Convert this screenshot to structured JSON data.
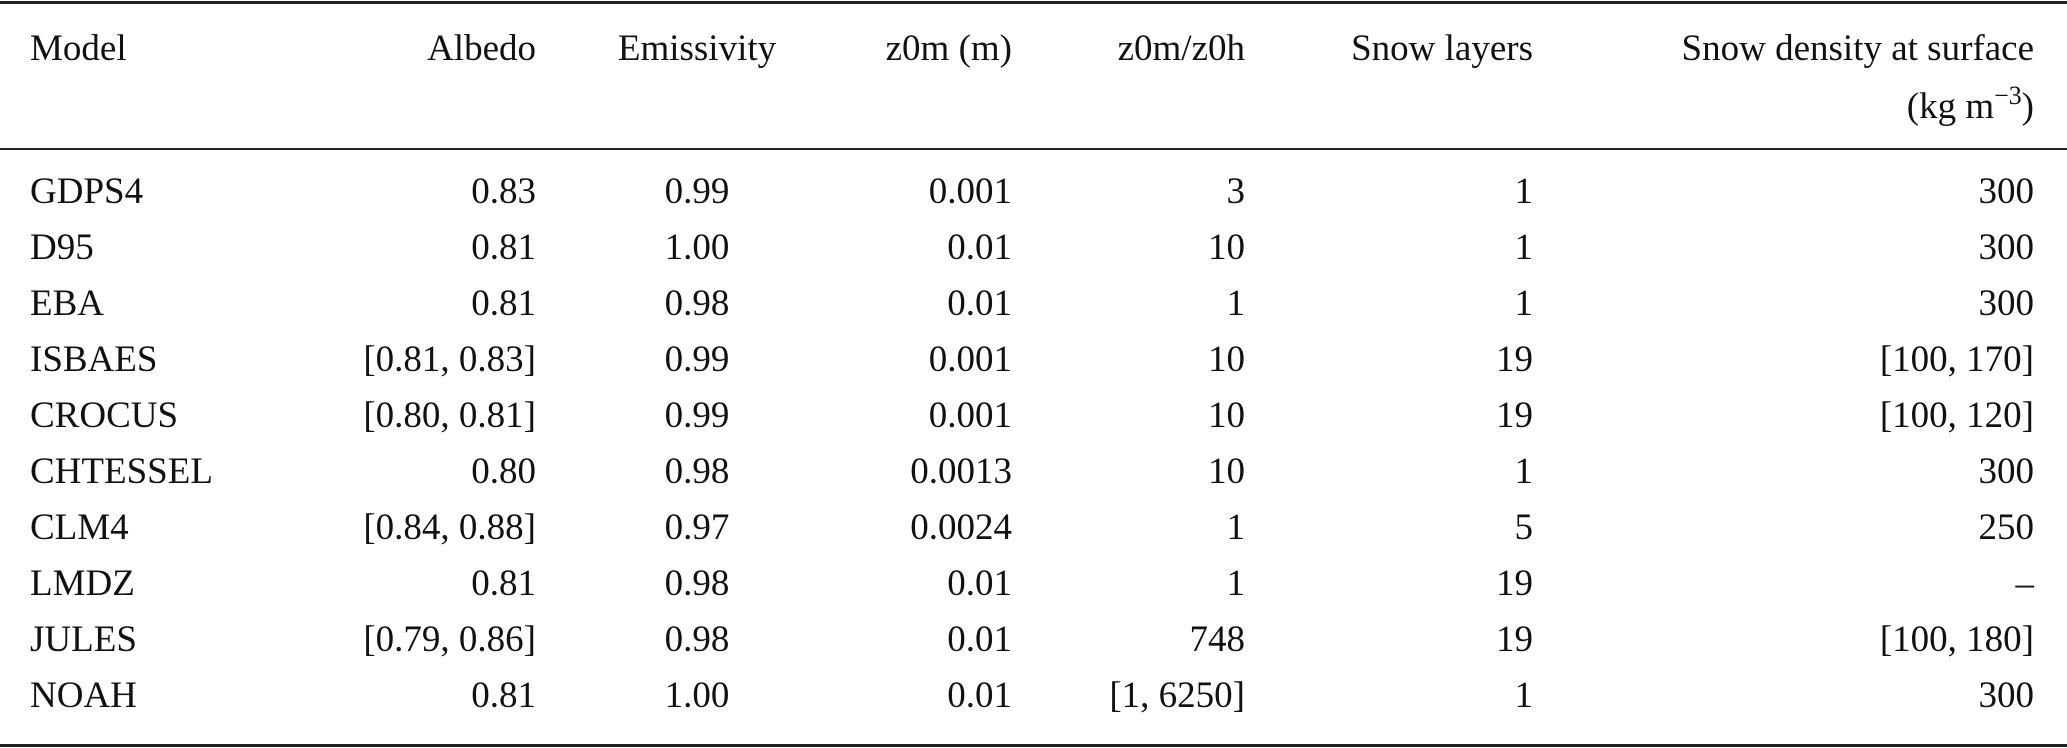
{
  "table": {
    "headers": [
      "Model",
      "Albedo",
      "Emissivity",
      "z0m (m)",
      "z0m/z0h",
      "Snow layers",
      "Snow density at surface"
    ],
    "density_unit": {
      "prefix": "(kg m",
      "exponent": "−3",
      "suffix": ")"
    },
    "rows": [
      [
        "GDPS4",
        "0.83",
        "0.99",
        "0.001",
        "3",
        "1",
        "300"
      ],
      [
        "D95",
        "0.81",
        "1.00",
        "0.01",
        "10",
        "1",
        "300"
      ],
      [
        "EBA",
        "0.81",
        "0.98",
        "0.01",
        "1",
        "1",
        "300"
      ],
      [
        "ISBAES",
        "[0.81, 0.83]",
        "0.99",
        "0.001",
        "10",
        "19",
        "[100, 170]"
      ],
      [
        "CROCUS",
        "[0.80, 0.81]",
        "0.99",
        "0.001",
        "10",
        "19",
        "[100, 120]"
      ],
      [
        "CHTESSEL",
        "0.80",
        "0.98",
        "0.0013",
        "10",
        "1",
        "300"
      ],
      [
        "CLM4",
        "[0.84, 0.88]",
        "0.97",
        "0.0024",
        "1",
        "5",
        "250"
      ],
      [
        "LMDZ",
        "0.81",
        "0.98",
        "0.01",
        "1",
        "19",
        "–"
      ],
      [
        "JULES",
        "[0.79, 0.86]",
        "0.98",
        "0.01",
        "748",
        "19",
        "[100, 180]"
      ],
      [
        "NOAH",
        "0.81",
        "1.00",
        "0.01",
        "[1, 6250]",
        "1",
        "300"
      ]
    ]
  }
}
